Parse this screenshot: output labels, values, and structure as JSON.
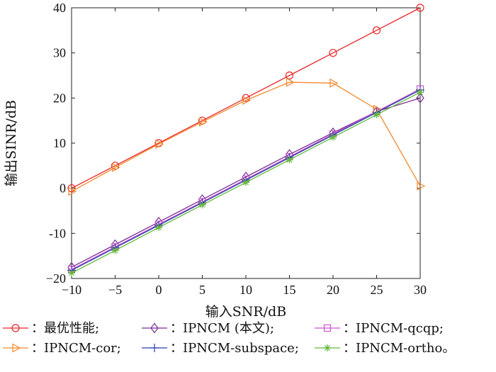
{
  "chart_data": {
    "type": "line",
    "title": "",
    "xlabel": "输入SNR/dB",
    "ylabel": "输出SINR/dB",
    "xlim": [
      -10,
      30
    ],
    "ylim": [
      -20,
      40
    ],
    "x": [
      -10,
      -5,
      0,
      5,
      10,
      15,
      20,
      25,
      30
    ],
    "xticks": [
      -10,
      -5,
      0,
      5,
      10,
      15,
      20,
      25,
      30
    ],
    "xtick_labels": [
      "−10",
      "−5",
      "0",
      "5",
      "10",
      "15",
      "20",
      "25",
      "30"
    ],
    "yticks": [
      -20,
      -10,
      0,
      10,
      20,
      30,
      40
    ],
    "ytick_labels": [
      "−20",
      "-10",
      "0",
      "10",
      "20",
      "30",
      "40"
    ],
    "grid": false,
    "legend_position": "bottom",
    "series": [
      {
        "name": "最优性能",
        "legend_label": "：最优性能;",
        "color": "#e8262a",
        "marker": "circle",
        "values": [
          0,
          5,
          10,
          15,
          20,
          25,
          30,
          35,
          40
        ]
      },
      {
        "name": "IPNCM (本文)",
        "legend_label": "：IPNCM (本文);",
        "color": "#7a2f93",
        "marker": "diamond",
        "values": [
          -17.5,
          -12.5,
          -7.5,
          -2.5,
          2.5,
          7.5,
          12.3,
          17.0,
          20.0
        ]
      },
      {
        "name": "IPNCM-qcqp",
        "legend_label": "：IPNCM-qcqp;",
        "color": "#cc55cc",
        "marker": "square",
        "values": [
          -18.0,
          -13.0,
          -8.0,
          -3.0,
          2.0,
          7.0,
          12.0,
          17.0,
          22.0
        ]
      },
      {
        "name": "IPNCM-cor",
        "legend_label": "：IPNCM-cor;",
        "color": "#f28a2e",
        "marker": "triangle-right",
        "values": [
          -0.7,
          4.6,
          9.8,
          14.7,
          19.5,
          23.5,
          23.3,
          17.5,
          0.5
        ]
      },
      {
        "name": "IPNCM-subspace",
        "legend_label": "：IPNCM-subspace;",
        "color": "#2a3fb0",
        "marker": "plus",
        "values": [
          -18.2,
          -13.2,
          -8.2,
          -3.2,
          1.8,
          6.8,
          11.8,
          16.8,
          21.8
        ]
      },
      {
        "name": "IPNCM-ortho",
        "legend_label": "：IPNCM-ortho。",
        "color": "#62b83a",
        "marker": "asterisk",
        "values": [
          -18.8,
          -13.8,
          -8.7,
          -3.7,
          1.3,
          6.3,
          11.3,
          16.3,
          21.3
        ]
      }
    ]
  }
}
